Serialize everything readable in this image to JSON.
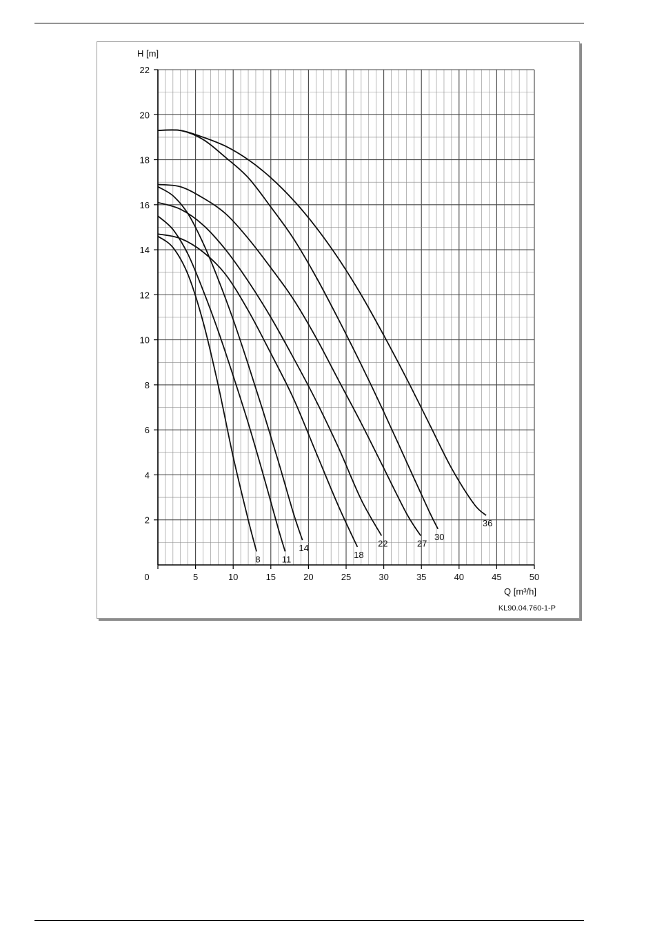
{
  "figure_code": "KL90.04.760-1-P",
  "chart_data": {
    "type": "line",
    "title": "",
    "xlabel": "Q [m³/h]",
    "ylabel": "H [m]",
    "xlim": [
      0,
      50
    ],
    "ylim": [
      0,
      22
    ],
    "x_ticks": [
      "0",
      "5",
      "10",
      "15",
      "20",
      "25",
      "30",
      "35",
      "40",
      "45",
      "50"
    ],
    "y_ticks": [
      "2",
      "4",
      "6",
      "8",
      "10",
      "12",
      "14",
      "16",
      "18",
      "20",
      "22"
    ],
    "grid": true,
    "series": [
      {
        "name": "8",
        "x": [
          0,
          2,
          4,
          6,
          8,
          10,
          12,
          13.1
        ],
        "y": [
          14.6,
          14.1,
          12.9,
          10.8,
          8.0,
          4.8,
          2.0,
          0.6
        ]
      },
      {
        "name": "11",
        "x": [
          0,
          2,
          4,
          6,
          8,
          10,
          12,
          14,
          16,
          16.9
        ],
        "y": [
          15.5,
          14.9,
          13.8,
          12.2,
          10.4,
          8.4,
          6.3,
          4.0,
          1.6,
          0.6
        ]
      },
      {
        "name": "14",
        "x": [
          0,
          2,
          4,
          6,
          8,
          10,
          12,
          14,
          16,
          18,
          19.2
        ],
        "y": [
          16.8,
          16.4,
          15.6,
          14.3,
          12.7,
          10.9,
          8.9,
          6.8,
          4.6,
          2.3,
          1.1
        ]
      },
      {
        "name": "18",
        "x": [
          0,
          3,
          6,
          9,
          12,
          15,
          18,
          21,
          24,
          26.5
        ],
        "y": [
          14.7,
          14.5,
          13.9,
          12.9,
          11.3,
          9.4,
          7.4,
          5.0,
          2.6,
          0.8
        ]
      },
      {
        "name": "22",
        "x": [
          0,
          3,
          6,
          9,
          12,
          15,
          18,
          21,
          24,
          27,
          29.7
        ],
        "y": [
          16.1,
          15.8,
          15.1,
          14.0,
          12.6,
          11.0,
          9.2,
          7.3,
          5.2,
          2.9,
          1.3
        ]
      },
      {
        "name": "27",
        "x": [
          0,
          3,
          6,
          9,
          12,
          15,
          18,
          21,
          24,
          27,
          30,
          33,
          34.9
        ],
        "y": [
          16.9,
          16.8,
          16.3,
          15.6,
          14.5,
          13.2,
          11.8,
          10.1,
          8.2,
          6.3,
          4.3,
          2.3,
          1.3
        ]
      },
      {
        "name": "30",
        "x": [
          0,
          3,
          6,
          9,
          12,
          15,
          18,
          21,
          24,
          27,
          30,
          33,
          36,
          37.2
        ],
        "y": [
          19.3,
          19.3,
          18.9,
          18.1,
          17.2,
          15.9,
          14.5,
          12.8,
          10.9,
          8.9,
          6.8,
          4.6,
          2.4,
          1.6
        ]
      },
      {
        "name": "36",
        "x": [
          0,
          3,
          6,
          9,
          12,
          15,
          18,
          21,
          24,
          27,
          30,
          33,
          36,
          39,
          42,
          43.6
        ],
        "y": [
          19.3,
          19.3,
          19.0,
          18.6,
          18.0,
          17.2,
          16.2,
          15.0,
          13.6,
          12.0,
          10.2,
          8.3,
          6.3,
          4.3,
          2.7,
          2.2
        ]
      }
    ]
  }
}
